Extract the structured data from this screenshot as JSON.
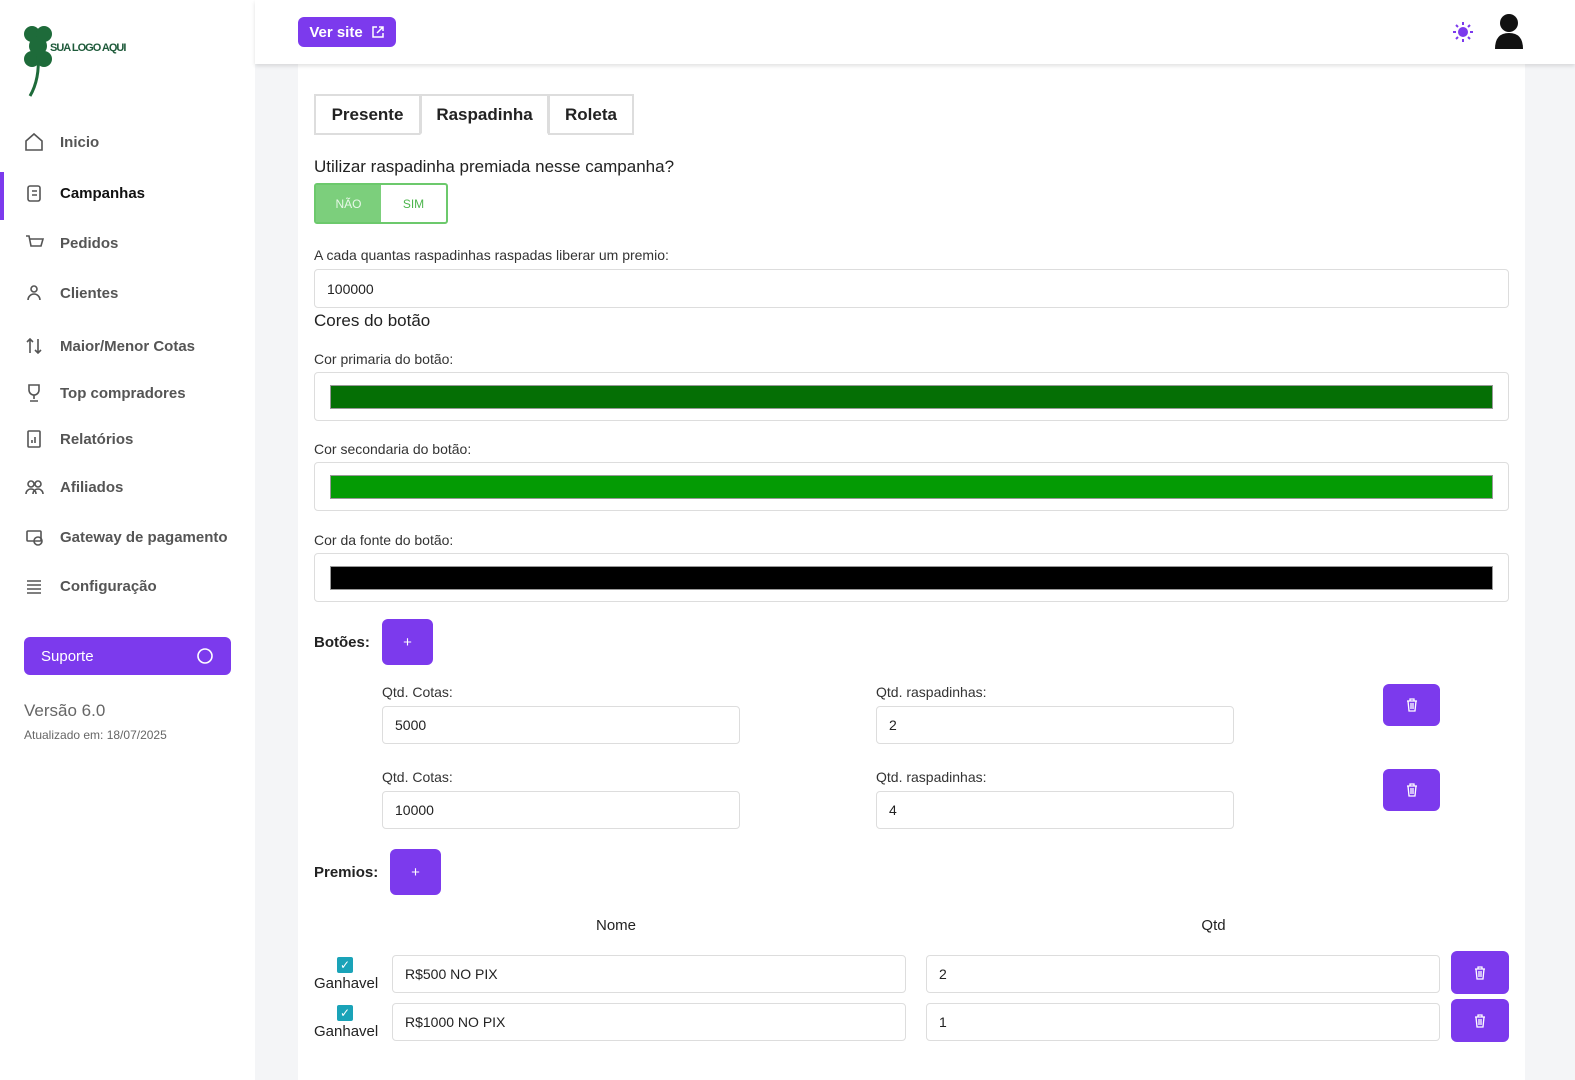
{
  "sidebar": {
    "logo_text": "SUA LOGO AQUI",
    "nav": [
      "Inicio",
      "Campanhas",
      "Pedidos",
      "Clientes",
      "Maior/Menor Cotas",
      "Top compradores",
      "Relatórios",
      "Afiliados",
      "Gateway de pagamento",
      "Configuração"
    ],
    "support": "Suporte",
    "version": "Versão 6.0",
    "updated": "Atualizado em: 18/07/2025"
  },
  "topbar": {
    "view_site": "Ver site"
  },
  "tabs": [
    "Presente",
    "Raspadinha",
    "Roleta"
  ],
  "scratch": {
    "question": "Utilizar raspadinha premiada nesse campanha?",
    "toggle": [
      "NÃO",
      "SIM"
    ],
    "interval_label": "A cada quantas raspadinhas raspadas liberar um premio:",
    "interval_value": 100000,
    "colors_title": "Cores do botão",
    "colors": [
      {
        "label": "Cor primaria do botão:",
        "color": "#056f05"
      },
      {
        "label": "Cor secondaria do botão:",
        "color": "#049b04"
      },
      {
        "label": "Cor da fonte do botão:",
        "color": "#000000"
      }
    ],
    "buttons_label": "Botões:",
    "add": "+",
    "buttons": [
      {
        "quotas_label": "Qtd. Cotas:",
        "quotas": 5000,
        "scratch_label": "Qtd. raspadinhas:",
        "scratch": 2
      },
      {
        "quotas_label": "Qtd. Cotas:",
        "quotas": 10000,
        "scratch_label": "Qtd. raspadinhas:",
        "scratch": 4
      }
    ],
    "prizes_label": "Premios:",
    "prize_headers": [
      "Nome",
      "Qtd"
    ],
    "prizes": [
      {
        "label": "Ganhavel",
        "name": "R$500 NO PIX",
        "qty": 2
      },
      {
        "label": "Ganhavel",
        "name": "R$1000 NO PIX",
        "qty": 1
      }
    ]
  }
}
